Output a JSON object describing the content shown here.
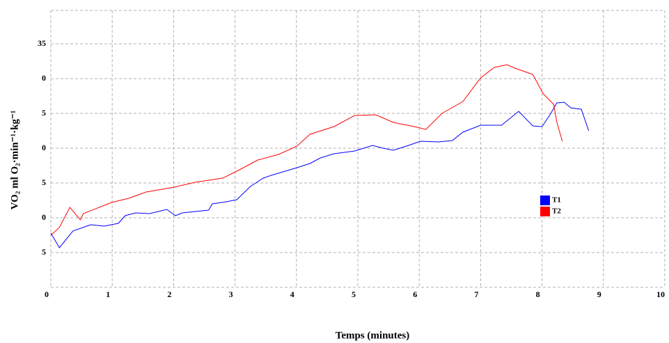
{
  "chart_data": {
    "type": "line",
    "xlabel": "Temps (minutes)",
    "ylabel": "VO₂ ml O₂·min⁻¹·kg⁻¹",
    "xlim": [
      0,
      10
    ],
    "ylim": [
      0,
      40
    ],
    "xticks": [
      0,
      1,
      2,
      3,
      4,
      5,
      6,
      7,
      8,
      9,
      10
    ],
    "yticks": [
      {
        "value": 5,
        "label": "5"
      },
      {
        "value": 10,
        "label": "0"
      },
      {
        "value": 15,
        "label": "5"
      },
      {
        "value": 20,
        "label": "0"
      },
      {
        "value": 25,
        "label": "5"
      },
      {
        "value": 30,
        "label": "0"
      },
      35
    ],
    "grid": true,
    "legend": "right",
    "series": [
      {
        "name": "T1",
        "color": "#0000ff",
        "x": [
          0,
          0.14,
          0.36,
          0.65,
          0.87,
          1.1,
          1.21,
          1.38,
          1.61,
          1.89,
          2.03,
          2.14,
          2.57,
          2.63,
          2.86,
          3.03,
          3.25,
          3.46,
          3.59,
          4.01,
          4.22,
          4.39,
          4.61,
          4.95,
          5.24,
          5.41,
          5.58,
          5.86,
          6.02,
          6.32,
          6.54,
          6.71,
          7,
          7.34,
          7.62,
          7.85,
          8,
          8.13,
          8.24,
          8.36,
          8.47,
          8.64,
          8.76
        ],
        "values": [
          7.8,
          5.7,
          8.1,
          9,
          8.8,
          9.2,
          10.3,
          10.7,
          10.6,
          11.2,
          10.3,
          10.7,
          11.1,
          12,
          12.3,
          12.6,
          14.5,
          15.7,
          16.1,
          17.2,
          17.8,
          18.6,
          19.2,
          19.6,
          20.4,
          20,
          19.7,
          20.5,
          21,
          20.9,
          21.1,
          22.3,
          23.3,
          23.3,
          25.3,
          23.2,
          23.1,
          24.8,
          26.5,
          26.6,
          25.8,
          25.6,
          22.5
        ]
      },
      {
        "name": "T2",
        "color": "#ff0000",
        "x": [
          0,
          0.14,
          0.31,
          0.48,
          0.53,
          0.99,
          1.27,
          1.55,
          2.01,
          2.35,
          2.8,
          3.03,
          3.37,
          3.71,
          4.01,
          4.22,
          4.61,
          4.95,
          5.29,
          5.58,
          5.92,
          6.11,
          6.37,
          6.71,
          7,
          7.22,
          7.43,
          7.56,
          7.85,
          8.02,
          8.19,
          8.24,
          8.33
        ],
        "values": [
          7.5,
          8.6,
          11.5,
          9.7,
          10.6,
          12.2,
          12.8,
          13.7,
          14.4,
          15.1,
          15.7,
          16.7,
          18.3,
          19.1,
          20.3,
          22,
          23.1,
          24.7,
          24.8,
          23.7,
          23.1,
          22.7,
          25,
          26.7,
          30.1,
          31.6,
          32,
          31.5,
          30.6,
          27.8,
          26.3,
          23.8,
          21
        ]
      }
    ]
  }
}
